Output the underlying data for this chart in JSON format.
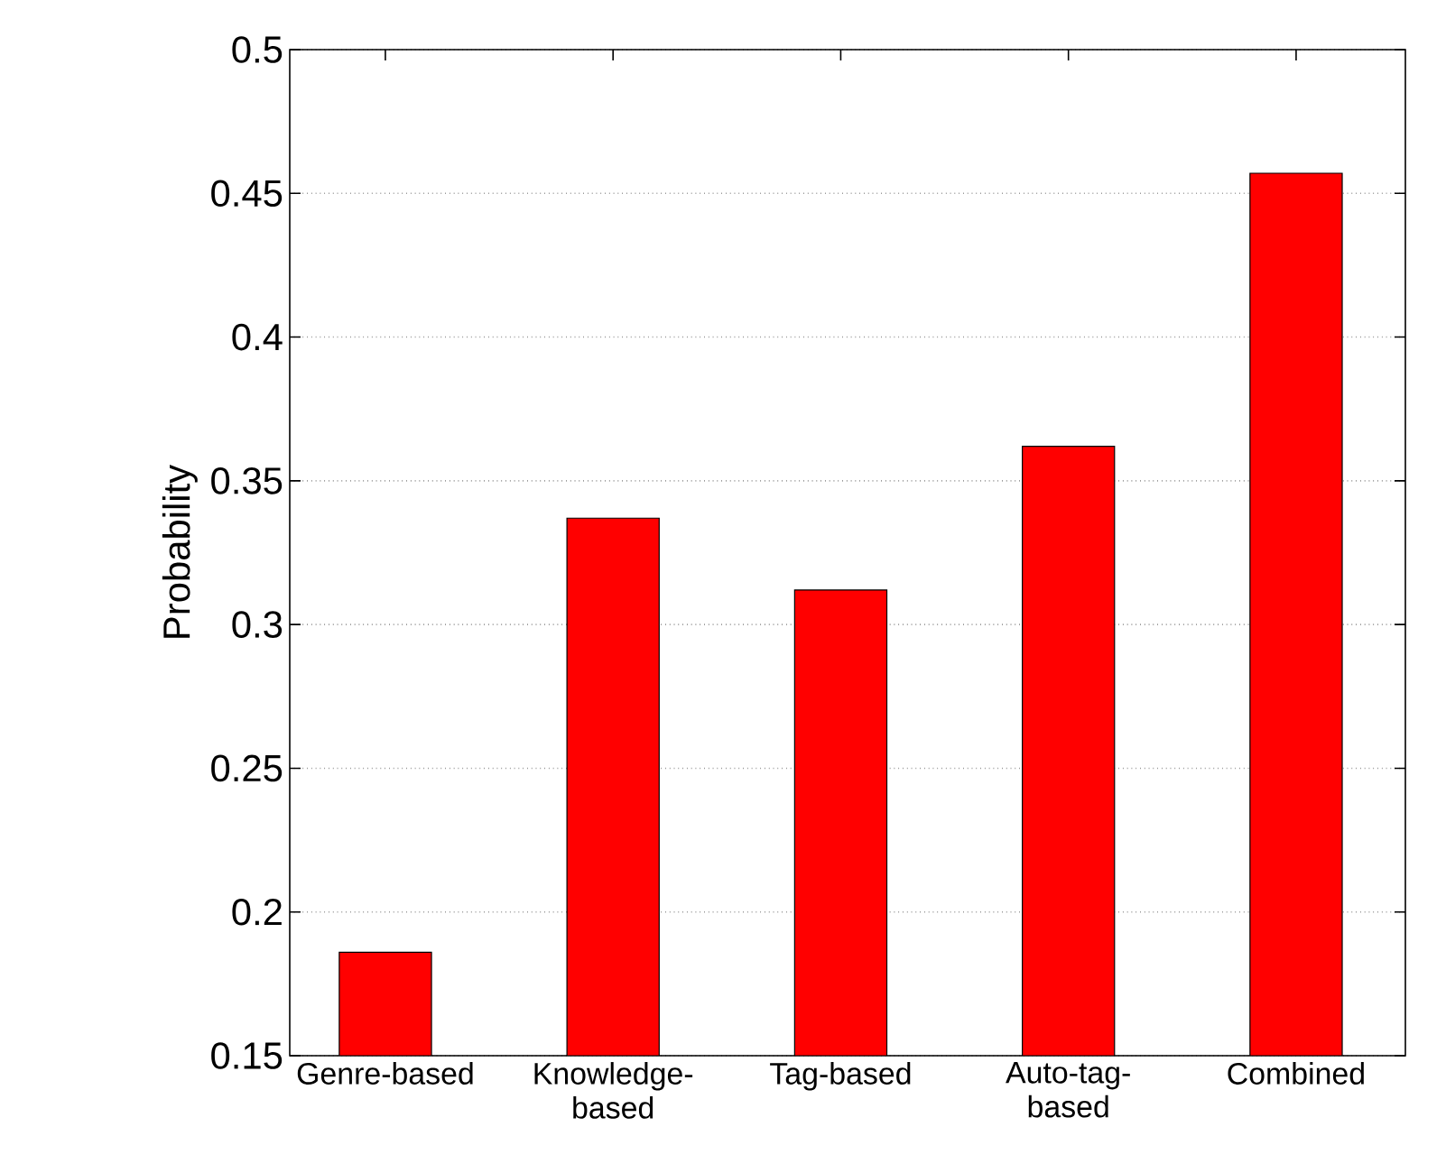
{
  "chart_data": {
    "type": "bar",
    "ylabel": "Probability",
    "categories": [
      "Genre-based",
      "Knowledge-based",
      "Tag-based",
      "Auto-tag-based",
      "Combined"
    ],
    "values": [
      0.186,
      0.337,
      0.312,
      0.362,
      0.457
    ],
    "color": "#ff0000",
    "ylim": [
      0.15,
      0.5
    ],
    "yticks": [
      0.15,
      0.2,
      0.25,
      0.3,
      0.35,
      0.4,
      0.45,
      0.5
    ],
    "grid": "y"
  }
}
